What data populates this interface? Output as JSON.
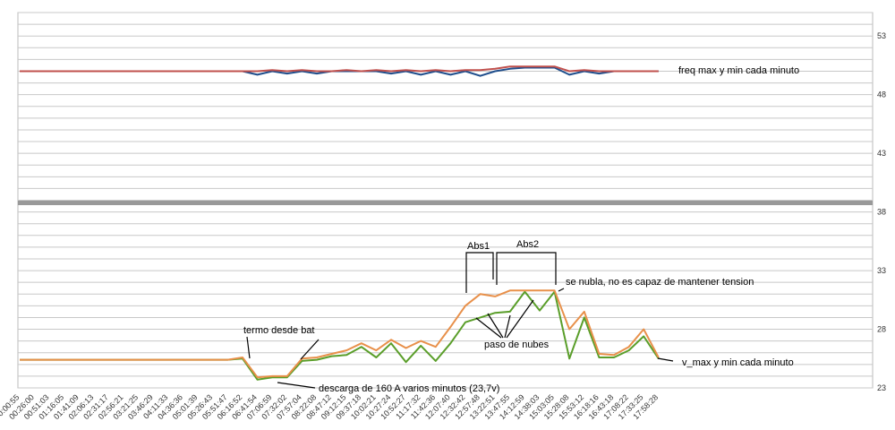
{
  "chart_data": {
    "type": "line",
    "categories": [
      "00:00:55",
      "00:26:00",
      "00:51:03",
      "01:16:05",
      "01:41:09",
      "02:06:13",
      "02:31:17",
      "02:56:21",
      "03:21:25",
      "03:46:29",
      "04:11:33",
      "04:36:36",
      "05:01:39",
      "05:26:43",
      "05:51:47",
      "06:16:52",
      "06:41:54",
      "07:06:59",
      "07:32:02",
      "07:57:04",
      "08:22:08",
      "08:47:12",
      "09:12:15",
      "09:37:18",
      "10:02:21",
      "10:27:24",
      "10:52:27",
      "11:17:32",
      "11:42:36",
      "12:07:40",
      "12:32:42",
      "12:57:48",
      "13:22:51",
      "13:47:55",
      "14:12:59",
      "14:38:03",
      "15:03:05",
      "15:28:08",
      "15:53:12",
      "16:18:16",
      "16:43:18",
      "17:08:22",
      "17:33:25",
      "17:58:28"
    ],
    "series": [
      {
        "color": "#1f4e8c",
        "values": [
          50.0,
          50.0,
          50.0,
          50.0,
          50.0,
          50.0,
          50.0,
          50.0,
          50.0,
          50.0,
          50.0,
          50.0,
          50.0,
          50.0,
          50.0,
          50.0,
          49.7,
          50.0,
          49.8,
          50.0,
          49.8,
          50.0,
          50.0,
          50.0,
          50.0,
          49.8,
          50.0,
          49.7,
          50.0,
          49.7,
          50.0,
          49.6,
          50.0,
          50.2,
          50.3,
          50.3,
          50.3,
          49.7,
          50.0,
          49.8,
          50.0,
          50.0,
          50.0,
          50.0
        ]
      },
      {
        "color": "#c0504d",
        "values": [
          50.0,
          50.0,
          50.0,
          50.0,
          50.0,
          50.0,
          50.0,
          50.0,
          50.0,
          50.0,
          50.0,
          50.0,
          50.0,
          50.0,
          50.0,
          50.0,
          50.0,
          50.1,
          50.0,
          50.1,
          50.0,
          50.0,
          50.1,
          50.0,
          50.1,
          50.0,
          50.1,
          50.0,
          50.1,
          50.0,
          50.1,
          50.1,
          50.2,
          50.4,
          50.4,
          50.4,
          50.4,
          50.0,
          50.1,
          50.0,
          50.0,
          50.0,
          50.0,
          50.0
        ]
      },
      {
        "color": "#5a9e2a",
        "values": [
          25.4,
          25.4,
          25.4,
          25.4,
          25.4,
          25.4,
          25.4,
          25.4,
          25.4,
          25.4,
          25.4,
          25.4,
          25.4,
          25.4,
          25.4,
          25.5,
          23.7,
          23.9,
          23.9,
          25.3,
          25.4,
          25.7,
          25.8,
          26.5,
          25.6,
          26.8,
          25.2,
          26.6,
          25.3,
          26.8,
          28.6,
          29.0,
          29.4,
          29.5,
          31.2,
          29.6,
          31.2,
          25.5,
          29.0,
          25.6,
          25.6,
          26.2,
          27.4,
          25.5
        ]
      },
      {
        "color": "#e8904a",
        "values": [
          25.4,
          25.4,
          25.4,
          25.4,
          25.4,
          25.4,
          25.4,
          25.4,
          25.4,
          25.4,
          25.4,
          25.4,
          25.4,
          25.4,
          25.4,
          25.6,
          23.9,
          24.0,
          24.0,
          25.5,
          25.6,
          25.9,
          26.2,
          26.8,
          26.2,
          27.1,
          26.4,
          27.0,
          26.5,
          28.2,
          30.0,
          31.0,
          30.8,
          31.3,
          31.3,
          31.3,
          31.3,
          28.0,
          29.5,
          25.9,
          25.8,
          26.5,
          28.0,
          25.6
        ]
      }
    ],
    "ylim": [
      23,
      55
    ],
    "yticks": [
      23,
      28,
      33,
      38,
      43,
      48,
      53
    ],
    "y_gridlines": [
      24,
      25,
      26,
      27,
      29,
      30,
      31,
      32,
      34,
      35,
      36,
      37,
      39,
      40,
      41,
      42,
      44,
      45,
      46,
      47,
      49,
      50,
      51,
      52,
      54,
      55
    ],
    "grid": true,
    "annotations": {
      "freq": "freq max y min cada minuto",
      "volt": "v_max y min cada minuto",
      "termo": "termo desde bat",
      "descarga": "descarga de 160 A varios minutos (23,7v)",
      "abs1": "Abs1",
      "abs2": "Abs2",
      "nubla": "se nubla, no es capaz de mantener tension",
      "nubes": "paso de nubes"
    }
  }
}
